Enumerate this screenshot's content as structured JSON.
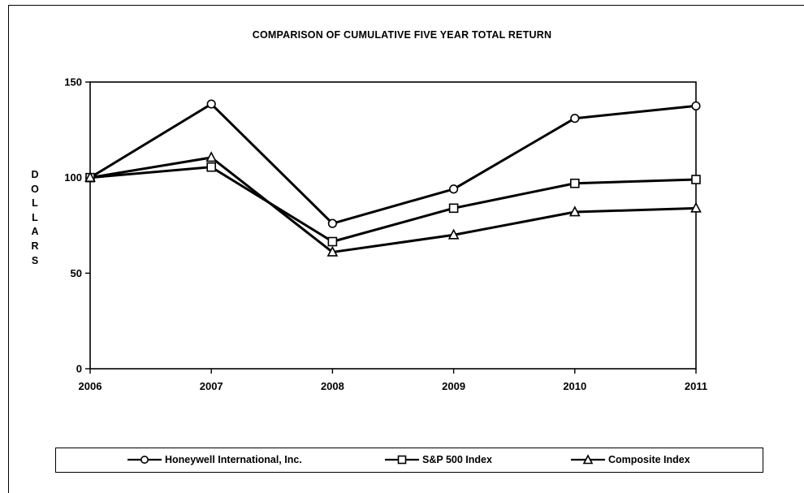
{
  "chart_data": {
    "type": "line",
    "title": "COMPARISON OF CUMULATIVE FIVE YEAR TOTAL RETURN",
    "ylabel": "DOLLARS",
    "xlabel": "",
    "x": [
      "2006",
      "2007",
      "2008",
      "2009",
      "2010",
      "2011"
    ],
    "ylim": [
      0,
      150
    ],
    "yticks": [
      0,
      50,
      100,
      150
    ],
    "grid": false,
    "legend_position": "bottom",
    "series": [
      {
        "name": "Honeywell International, Inc.",
        "marker": "circle",
        "values": [
          100,
          138.5,
          76,
          94,
          131,
          137.5
        ]
      },
      {
        "name": "S&P 500 Index",
        "marker": "square",
        "values": [
          100,
          105.5,
          66.5,
          84,
          97,
          99
        ]
      },
      {
        "name": "Composite Index",
        "marker": "triangle",
        "values": [
          100,
          110.5,
          61,
          70,
          82,
          84
        ]
      }
    ],
    "colors": {
      "line": "#000000",
      "marker_fill": "#ffffff"
    }
  }
}
